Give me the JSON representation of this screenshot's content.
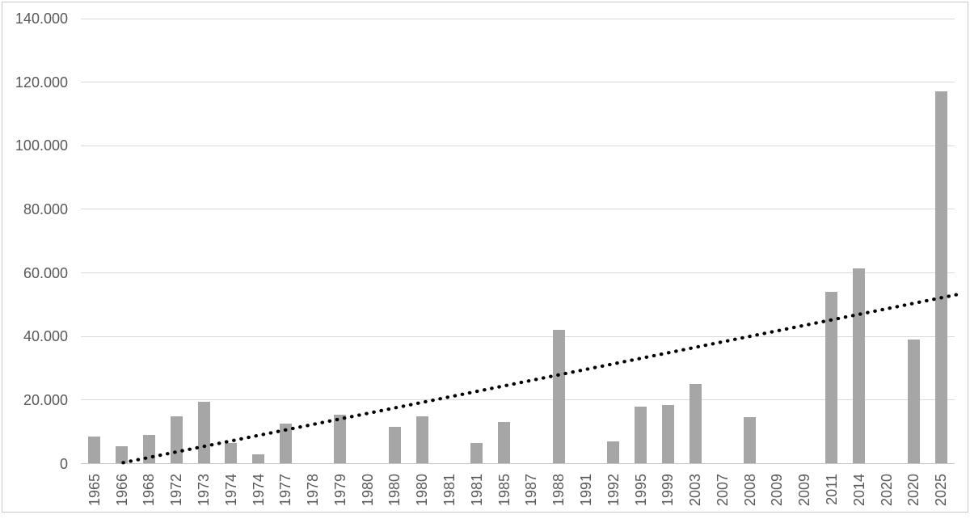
{
  "chart_data": {
    "type": "bar",
    "title": "",
    "xlabel": "",
    "ylabel": "",
    "categories": [
      "1965",
      "1966",
      "1968",
      "1972",
      "1973",
      "1974",
      "1974",
      "1977",
      "1978",
      "1979",
      "1980",
      "1980",
      "1980",
      "1981",
      "1981",
      "1985",
      "1987",
      "1988",
      "1991",
      "1992",
      "1995",
      "1999",
      "2003",
      "2007",
      "2008",
      "2009",
      "2009",
      "2011",
      "2014",
      "2020",
      "2020",
      "2025"
    ],
    "values": [
      8500,
      5500,
      9000,
      15000,
      19500,
      6500,
      3000,
      12500,
      0,
      15500,
      0,
      11500,
      15000,
      0,
      6500,
      13000,
      0,
      42000,
      0,
      7000,
      18000,
      18500,
      25000,
      0,
      14500,
      0,
      0,
      54000,
      61500,
      0,
      39000,
      117000
    ],
    "ylim": [
      0,
      140000
    ],
    "ytick_step": 20000,
    "ytick_labels": [
      "0",
      "20.000",
      "40.000",
      "60.000",
      "80.000",
      "100.000",
      "120.000",
      "140.000"
    ],
    "grid": true,
    "legend": "none",
    "trendline": {
      "style": "dotted",
      "start_index": 1.05,
      "start_value": 300,
      "end_index": 31.6,
      "end_value": 53200
    }
  },
  "colors": {
    "bar": "#a6a6a6",
    "gridline": "#d9d9d9",
    "axis_line": "#c6c6c6",
    "label": "#595959",
    "trend": "#000000",
    "frame": "#c9c9c9",
    "background": "#ffffff"
  }
}
